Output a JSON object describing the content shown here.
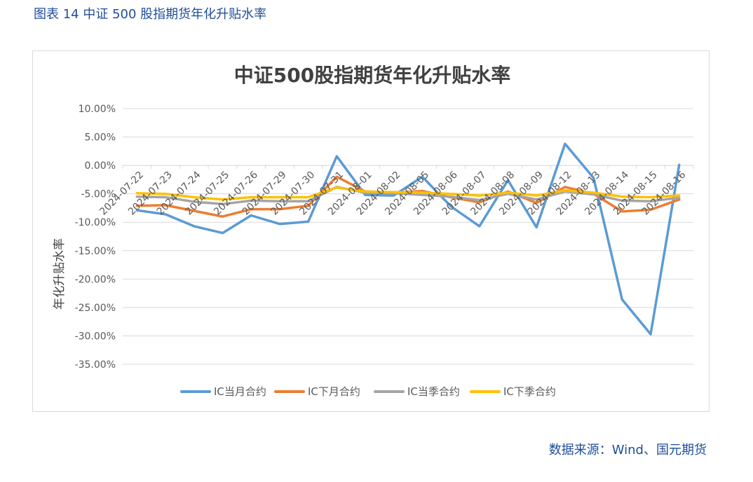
{
  "caption": "图表 14 中证 500 股指期货年化升贴水率",
  "source": "数据来源：Wind、国元期货",
  "chart_data": {
    "type": "line",
    "title": "中证500股指期货年化升贴水率",
    "xlabel": "",
    "ylabel": "年化升贴水率",
    "ylim": [
      -35,
      10
    ],
    "yticks": [
      10,
      5,
      0,
      -5,
      -10,
      -15,
      -20,
      -25,
      -30,
      -35
    ],
    "ytick_labels": [
      "10.00%",
      "5.00%",
      "0.00%",
      "-5.00%",
      "-10.00%",
      "-15.00%",
      "-20.00%",
      "-25.00%",
      "-30.00%",
      "-35.00%"
    ],
    "grid": true,
    "legend_position": "bottom",
    "categories": [
      "2024-07-22",
      "2024-07-23",
      "2024-07-24",
      "2024-07-25",
      "2024-07-26",
      "2024-07-29",
      "2024-07-30",
      "2024-07-31",
      "2024-08-01",
      "2024-08-02",
      "2024-08-05",
      "2024-08-06",
      "2024-08-07",
      "2024-08-08",
      "2024-08-09",
      "2024-08-12",
      "2024-08-13",
      "2024-08-14",
      "2024-08-15",
      "2024-08-16"
    ],
    "series": [
      {
        "name": "IC当月合约",
        "color": "#5b9bd5",
        "values": [
          -7.9,
          -8.6,
          -10.7,
          -11.9,
          -8.8,
          -10.3,
          -9.9,
          1.6,
          -5.2,
          -5.3,
          -2.0,
          -7.2,
          -10.7,
          -2.6,
          -10.9,
          3.8,
          -2.2,
          -23.6,
          -29.7,
          0.1
        ]
      },
      {
        "name": "IC下月合约",
        "color": "#ed7d31",
        "values": [
          -7.1,
          -7.0,
          -8.0,
          -9.0,
          -7.7,
          -7.7,
          -7.1,
          -2.0,
          -4.6,
          -4.8,
          -4.5,
          -5.6,
          -6.5,
          -4.6,
          -6.6,
          -3.8,
          -5.0,
          -8.1,
          -7.8,
          -6.0
        ]
      },
      {
        "name": "IC当季合约",
        "color": "#a5a5a5",
        "values": [
          -5.5,
          -5.6,
          -6.4,
          -6.8,
          -6.2,
          -6.3,
          -6.3,
          -3.8,
          -4.8,
          -4.9,
          -5.2,
          -5.5,
          -6.1,
          -5.0,
          -6.0,
          -4.6,
          -5.1,
          -6.2,
          -6.3,
          -5.7
        ]
      },
      {
        "name": "IC下季合约",
        "color": "#ffc000",
        "values": [
          -4.9,
          -5.0,
          -5.6,
          -6.0,
          -5.6,
          -5.6,
          -5.6,
          -3.9,
          -4.6,
          -4.7,
          -4.8,
          -5.0,
          -5.3,
          -4.8,
          -5.3,
          -4.4,
          -4.8,
          -5.5,
          -5.6,
          -5.3
        ]
      }
    ]
  }
}
